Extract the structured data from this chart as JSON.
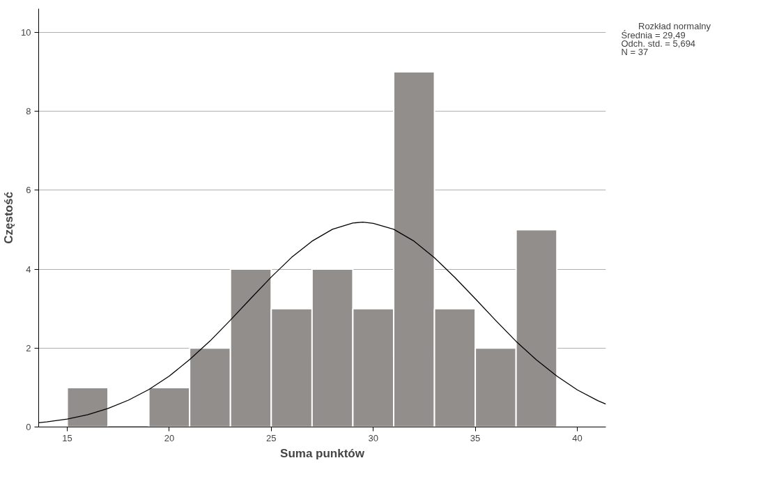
{
  "chart_data": {
    "type": "histogram",
    "xlabel": "Suma punktów",
    "ylabel": "Częstość",
    "bins": [
      15,
      17,
      19,
      21,
      23,
      25,
      27,
      29,
      31,
      33,
      35,
      37,
      39
    ],
    "values": [
      1,
      0,
      1,
      2,
      4,
      3,
      4,
      3,
      9,
      3,
      2,
      5
    ],
    "color": "#928e8c",
    "series": [
      {
        "type": "line",
        "name": "Rozkład normalny",
        "color": "#000000",
        "x": [
          13.6,
          14,
          15,
          16,
          17,
          18,
          19,
          20,
          21,
          22,
          23,
          24,
          25,
          26,
          27,
          28,
          29,
          29.49,
          30,
          31,
          32,
          33,
          34,
          35,
          36,
          37,
          38,
          39,
          40,
          41,
          41.4
        ],
        "values": [
          0.11,
          0.13,
          0.2,
          0.31,
          0.47,
          0.68,
          0.95,
          1.29,
          1.71,
          2.18,
          2.71,
          3.26,
          3.8,
          4.3,
          4.71,
          5.01,
          5.17,
          5.19,
          5.16,
          5.01,
          4.71,
          4.29,
          3.79,
          3.25,
          2.7,
          2.17,
          1.7,
          1.29,
          0.94,
          0.67,
          0.58
        ]
      }
    ],
    "annotations": [
      "Średnia = 29,49",
      "Odch. std. = 5,694",
      "N = 37"
    ],
    "xlim": [
      13.6,
      41.4
    ],
    "xticks": [
      15,
      20,
      25,
      30,
      35,
      40
    ],
    "ylim": [
      0,
      10.6
    ],
    "yticks": [
      0,
      2,
      4,
      6,
      8,
      10
    ],
    "grid": "y",
    "legend": "top right",
    "line_style": "solid"
  }
}
